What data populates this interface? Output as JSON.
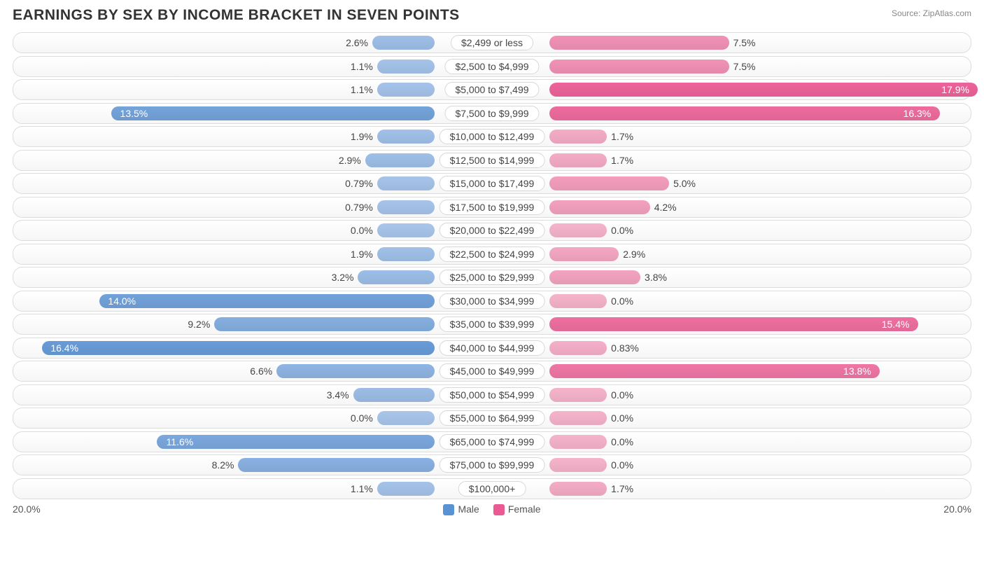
{
  "title": "EARNINGS BY SEX BY INCOME BRACKET IN SEVEN POINTS",
  "source": "Source: ZipAtlas.com",
  "axis_max": 20.0,
  "axis_left_label": "20.0%",
  "axis_right_label": "20.0%",
  "legend": {
    "male": "Male",
    "female": "Female"
  },
  "colors": {
    "male_low": "#a9c6eb",
    "male_high": "#5a93d4",
    "female_low": "#f6b4cb",
    "female_high": "#ec5a94",
    "row_border": "#dcdcdc",
    "text": "#444444"
  },
  "rows": [
    {
      "label": "$2,499 or less",
      "male": 2.6,
      "female": 7.5,
      "male_label": "2.6%",
      "female_label": "7.5%"
    },
    {
      "label": "$2,500 to $4,999",
      "male": 1.1,
      "female": 7.5,
      "male_label": "1.1%",
      "female_label": "7.5%"
    },
    {
      "label": "$5,000 to $7,499",
      "male": 1.1,
      "female": 17.9,
      "male_label": "1.1%",
      "female_label": "17.9%"
    },
    {
      "label": "$7,500 to $9,999",
      "male": 13.5,
      "female": 16.3,
      "male_label": "13.5%",
      "female_label": "16.3%"
    },
    {
      "label": "$10,000 to $12,499",
      "male": 1.9,
      "female": 1.7,
      "male_label": "1.9%",
      "female_label": "1.7%"
    },
    {
      "label": "$12,500 to $14,999",
      "male": 2.9,
      "female": 1.7,
      "male_label": "2.9%",
      "female_label": "1.7%"
    },
    {
      "label": "$15,000 to $17,499",
      "male": 0.79,
      "female": 5.0,
      "male_label": "0.79%",
      "female_label": "5.0%"
    },
    {
      "label": "$17,500 to $19,999",
      "male": 0.79,
      "female": 4.2,
      "male_label": "0.79%",
      "female_label": "4.2%"
    },
    {
      "label": "$20,000 to $22,499",
      "male": 0.0,
      "female": 0.0,
      "male_label": "0.0%",
      "female_label": "0.0%"
    },
    {
      "label": "$22,500 to $24,999",
      "male": 1.9,
      "female": 2.9,
      "male_label": "1.9%",
      "female_label": "2.9%"
    },
    {
      "label": "$25,000 to $29,999",
      "male": 3.2,
      "female": 3.8,
      "male_label": "3.2%",
      "female_label": "3.8%"
    },
    {
      "label": "$30,000 to $34,999",
      "male": 14.0,
      "female": 0.0,
      "male_label": "14.0%",
      "female_label": "0.0%"
    },
    {
      "label": "$35,000 to $39,999",
      "male": 9.2,
      "female": 15.4,
      "male_label": "9.2%",
      "female_label": "15.4%"
    },
    {
      "label": "$40,000 to $44,999",
      "male": 16.4,
      "female": 0.83,
      "male_label": "16.4%",
      "female_label": "0.83%"
    },
    {
      "label": "$45,000 to $49,999",
      "male": 6.6,
      "female": 13.8,
      "male_label": "6.6%",
      "female_label": "13.8%"
    },
    {
      "label": "$50,000 to $54,999",
      "male": 3.4,
      "female": 0.0,
      "male_label": "3.4%",
      "female_label": "0.0%"
    },
    {
      "label": "$55,000 to $64,999",
      "male": 0.0,
      "female": 0.0,
      "male_label": "0.0%",
      "female_label": "0.0%"
    },
    {
      "label": "$65,000 to $74,999",
      "male": 11.6,
      "female": 0.0,
      "male_label": "11.6%",
      "female_label": "0.0%"
    },
    {
      "label": "$75,000 to $99,999",
      "male": 8.2,
      "female": 0.0,
      "male_label": "8.2%",
      "female_label": "0.0%"
    },
    {
      "label": "$100,000+",
      "male": 1.1,
      "female": 1.7,
      "male_label": "1.1%",
      "female_label": "1.7%"
    }
  ],
  "style": {
    "bar_min_pct": 12,
    "inside_threshold": 10,
    "center_label_half_pct": 12
  }
}
